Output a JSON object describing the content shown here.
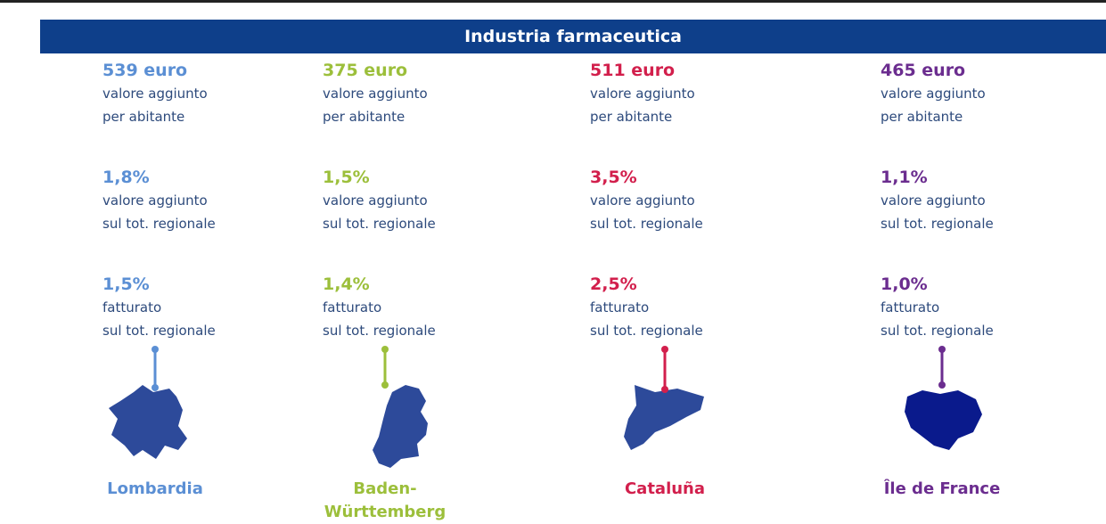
{
  "title": "Industria farmaceutica",
  "regions": [
    {
      "name": "Lombardia",
      "color": "#5b8fd4",
      "stats": [
        {
          "value": "539 euro",
          "label": [
            "valore aggiunto",
            "per abitante"
          ]
        },
        {
          "value": "1,8%",
          "label": [
            "valore aggiunto",
            "sul tot. regionale"
          ]
        },
        {
          "value": "1,5%",
          "label": [
            "fatturato",
            "sul tot. regionale"
          ]
        }
      ]
    },
    {
      "name": "Baden-Württemberg",
      "color": "#9cbf3b",
      "stats": [
        {
          "value": "375 euro",
          "label": [
            "valore aggiunto",
            "per abitante"
          ]
        },
        {
          "value": "1,5%",
          "label": [
            "valore aggiunto",
            "sul tot. regionale"
          ]
        },
        {
          "value": "1,4%",
          "label": [
            "fatturato",
            "sul tot. regionale"
          ]
        }
      ]
    },
    {
      "name": "Cataluña",
      "color": "#d21f4c",
      "stats": [
        {
          "value": "511 euro",
          "label": [
            "valore aggiunto",
            "per abitante"
          ]
        },
        {
          "value": "3,5%",
          "label": [
            "valore aggiunto",
            "sul tot. regionale"
          ]
        },
        {
          "value": "2,5%",
          "label": [
            "fatturato",
            "sul tot. regionale"
          ]
        }
      ]
    },
    {
      "name": "Île de France",
      "color": "#6b2d8f",
      "stats": [
        {
          "value": "465 euro",
          "label": [
            "valore aggiunto",
            "per abitante"
          ]
        },
        {
          "value": "1,1%",
          "label": [
            "valore aggiunto",
            "sul tot. regionale"
          ]
        },
        {
          "value": "1,0%",
          "label": [
            "fatturato",
            "sul tot. regionale"
          ]
        }
      ]
    }
  ]
}
